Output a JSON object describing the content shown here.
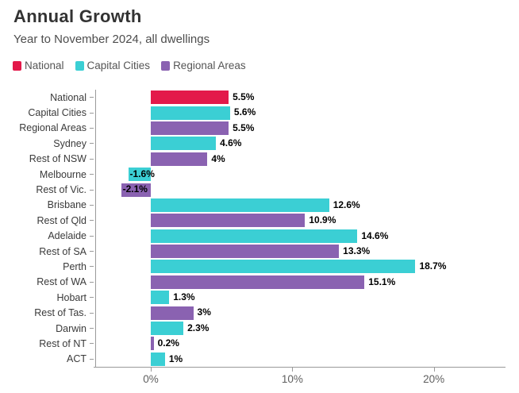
{
  "header": {
    "title": "Annual Growth",
    "subtitle": "Year to November 2024, all dwellings"
  },
  "legend": {
    "items": [
      {
        "label": "National",
        "series": "national"
      },
      {
        "label": "Capital Cities",
        "series": "capital"
      },
      {
        "label": "Regional Areas",
        "series": "regional"
      }
    ]
  },
  "colors": {
    "national": "#e3194a",
    "capital": "#3bcfd4",
    "regional": "#8a62b1",
    "axis": "#9a9a9a",
    "value_label": "#000000"
  },
  "chart_data": {
    "type": "bar",
    "orientation": "horizontal",
    "title": "Annual Growth",
    "subtitle": "Year to November 2024, all dwellings",
    "categories": [
      "National",
      "Capital Cities",
      "Regional Areas",
      "Sydney",
      "Rest of NSW",
      "Melbourne",
      "Rest of Vic.",
      "Brisbane",
      "Rest of Qld",
      "Adelaide",
      "Rest of SA",
      "Perth",
      "Rest of WA",
      "Hobart",
      "Rest of Tas.",
      "Darwin",
      "Rest of NT",
      "ACT"
    ],
    "values": [
      5.5,
      5.6,
      5.5,
      4.6,
      4,
      -1.6,
      -2.1,
      12.6,
      10.9,
      14.6,
      13.3,
      18.7,
      15.1,
      1.3,
      3,
      2.3,
      0.2,
      1
    ],
    "value_labels": [
      "5.5%",
      "5.6%",
      "5.5%",
      "4.6%",
      "4%",
      "-1.6%",
      "-2.1%",
      "12.6%",
      "10.9%",
      "14.6%",
      "13.3%",
      "18.7%",
      "15.1%",
      "1.3%",
      "3%",
      "2.3%",
      "0.2%",
      "1%"
    ],
    "series_per_bar": [
      "national",
      "capital",
      "regional",
      "capital",
      "regional",
      "capital",
      "regional",
      "capital",
      "regional",
      "capital",
      "regional",
      "capital",
      "regional",
      "capital",
      "regional",
      "capital",
      "regional",
      "capital"
    ],
    "xlabel": "",
    "ylabel": "",
    "xlim": [
      -3.93,
      25.07
    ],
    "x_ticks": [
      0,
      10,
      20
    ],
    "x_tick_labels": [
      "0%",
      "10%",
      "20%"
    ],
    "grid": false,
    "legend_position": "top"
  }
}
